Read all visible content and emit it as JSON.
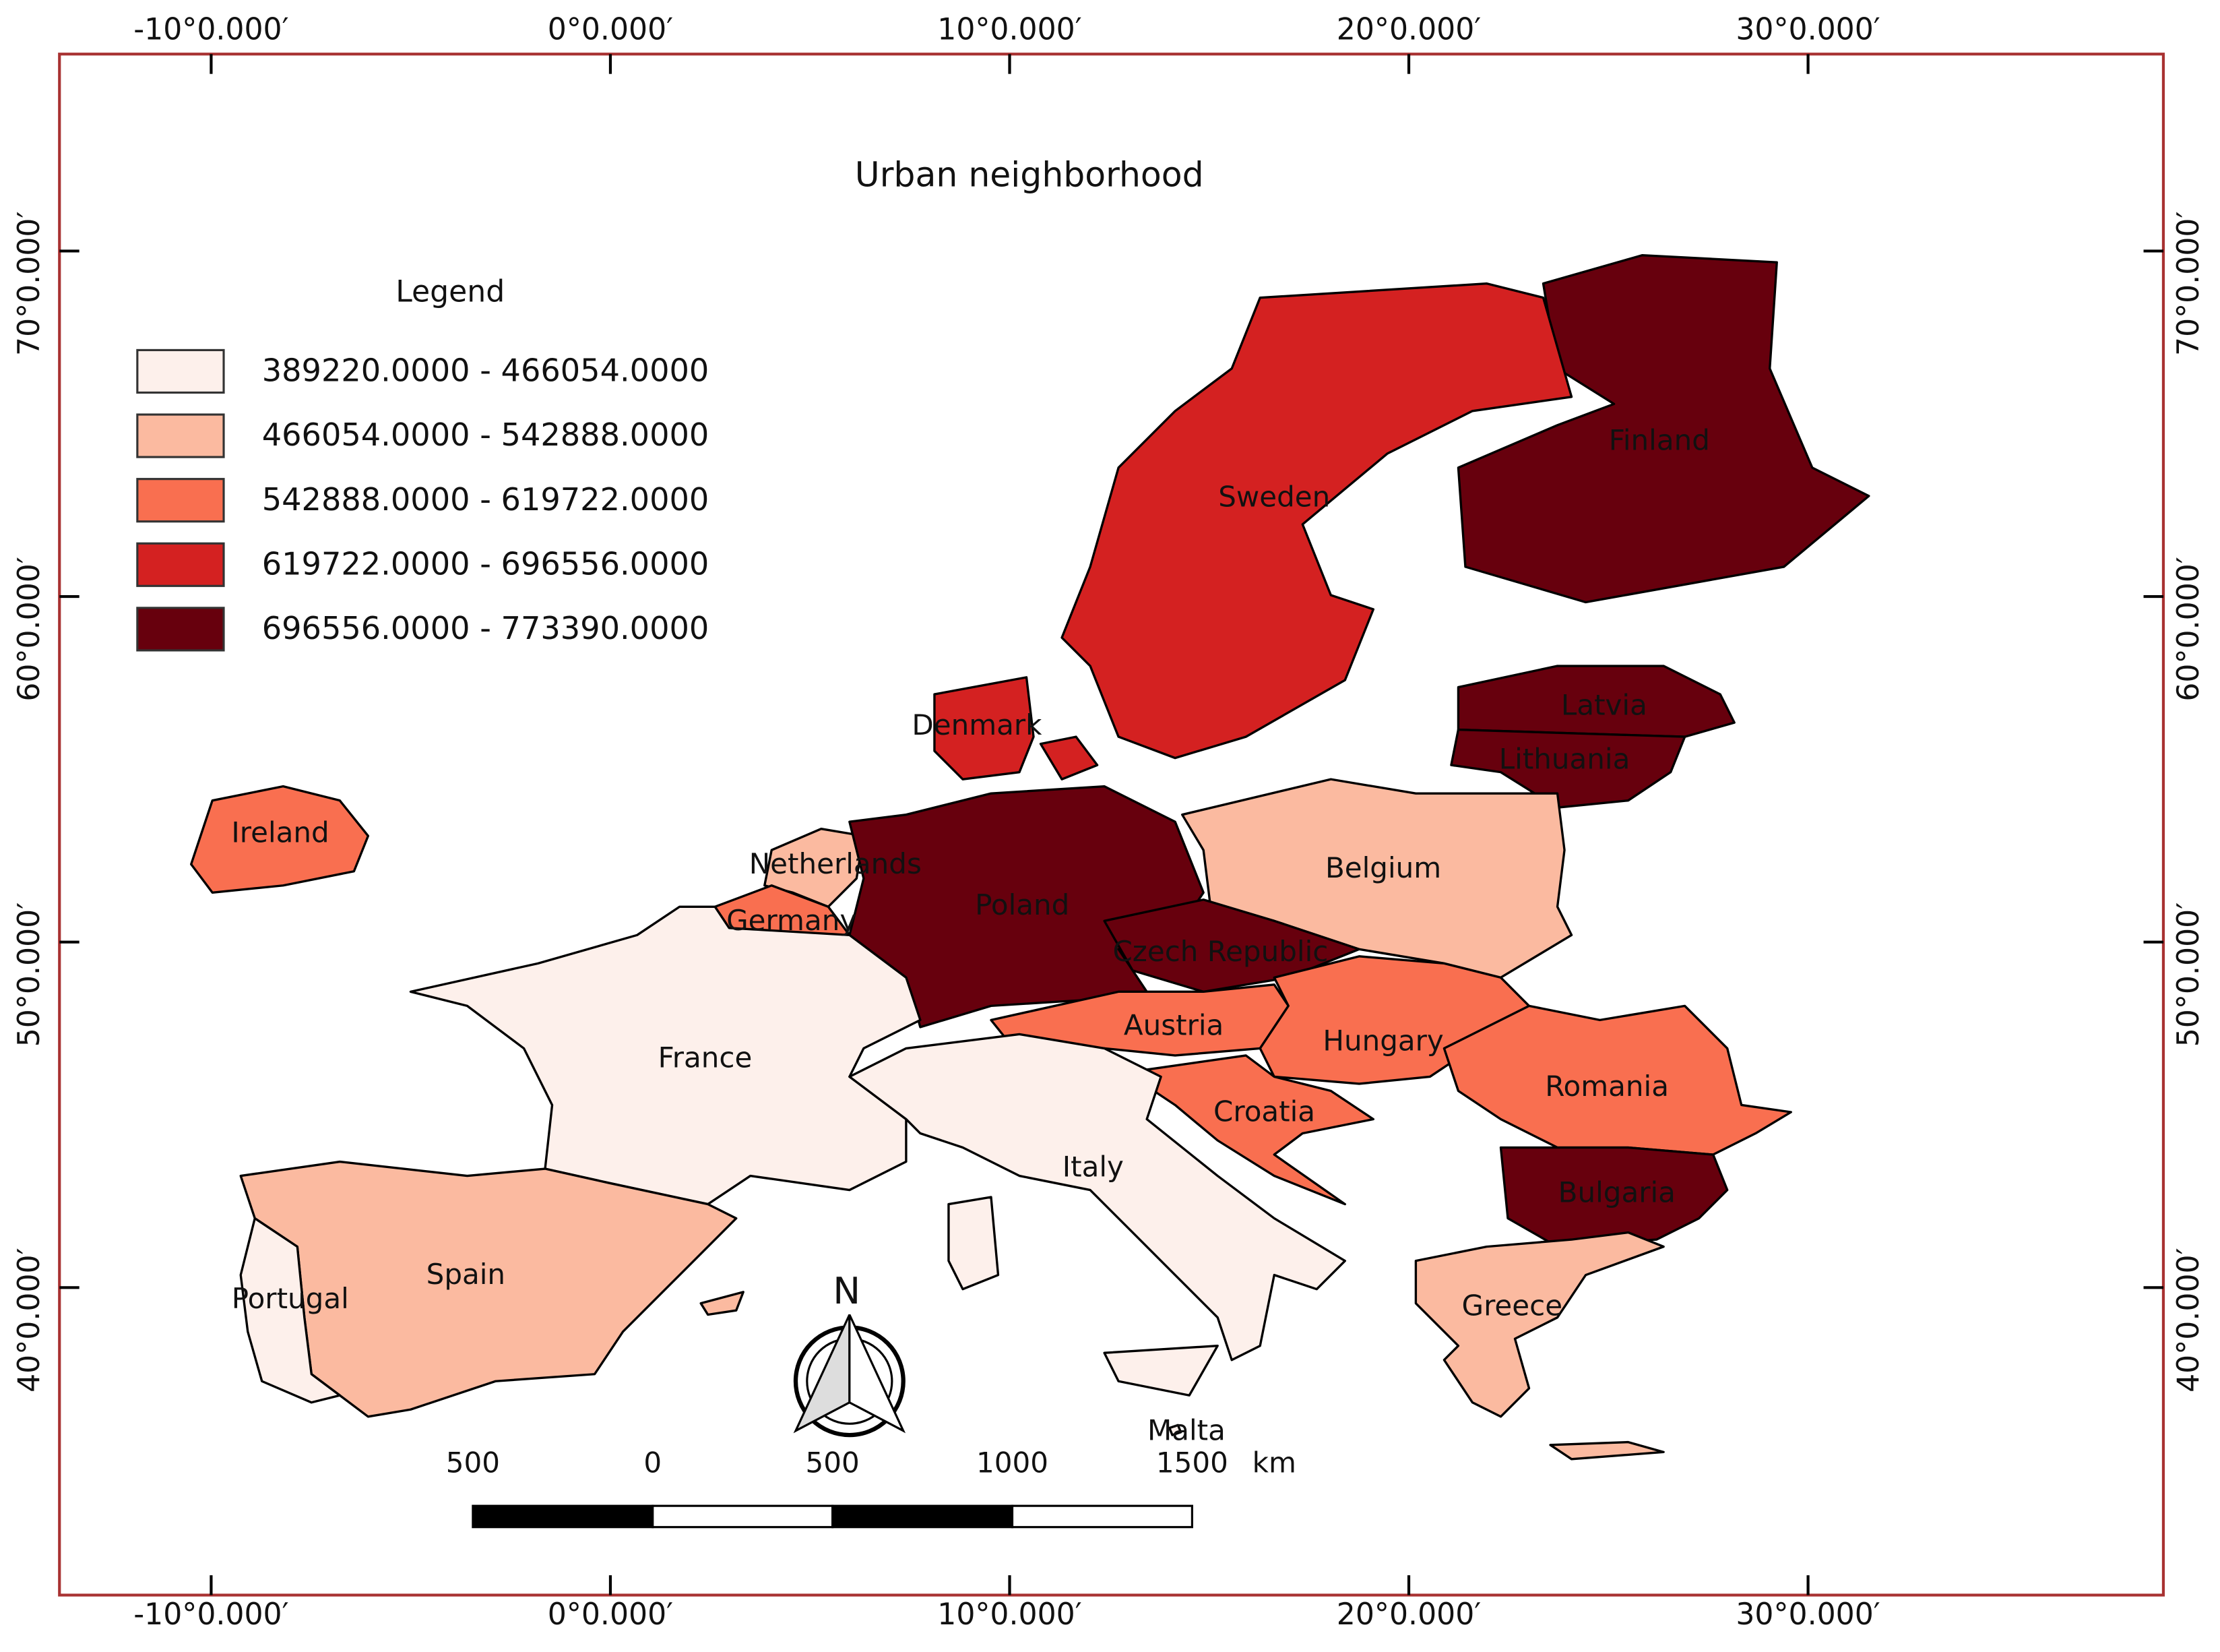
{
  "title": "Urban neighborhood",
  "legend": {
    "title": "Legend",
    "items": [
      {
        "label": "389220.0000 - 466054.0000",
        "color": "#fdf0eb"
      },
      {
        "label": "466054.0000 - 542888.0000",
        "color": "#fbbaa0"
      },
      {
        "label": "542888.0000 - 619722.0000",
        "color": "#f96f50"
      },
      {
        "label": "619722.0000 - 696556.0000",
        "color": "#d42121"
      },
      {
        "label": "696556.0000 - 773390.0000",
        "color": "#67000d"
      }
    ]
  },
  "graticule": {
    "xlim": [
      -13.8,
      38.9
    ],
    "ylim": [
      31.1,
      75.7
    ],
    "xticks": [
      {
        "value": -10,
        "label": "-10°0.000′"
      },
      {
        "value": 0,
        "label": "0°0.000′"
      },
      {
        "value": 10,
        "label": "10°0.000′"
      },
      {
        "value": 20,
        "label": "20°0.000′"
      },
      {
        "value": 30,
        "label": "30°0.000′"
      }
    ],
    "yticks": [
      {
        "value": 40,
        "label": "40°0.000′"
      },
      {
        "value": 50,
        "label": "50°0.000′"
      },
      {
        "value": 60,
        "label": "60°0.000′"
      },
      {
        "value": 70,
        "label": "70°0.000′"
      }
    ]
  },
  "countries": [
    {
      "name": "Finland",
      "color": "#67000d"
    },
    {
      "name": "Sweden",
      "color": "#d42121"
    },
    {
      "name": "Latvia",
      "color": "#67000d"
    },
    {
      "name": "Lithuania",
      "color": "#67000d"
    },
    {
      "name": "Denmark",
      "color": "#d42121"
    },
    {
      "name": "Ireland",
      "color": "#f96f50"
    },
    {
      "name": "Netherlands",
      "color": "#fbbaa0"
    },
    {
      "name": "Germany",
      "color": "#f96f50"
    },
    {
      "name": "Poland",
      "color": "#67000d"
    },
    {
      "name": "Belgium",
      "color": "#fbbaa0"
    },
    {
      "name": "Czech Republic",
      "color": "#67000d"
    },
    {
      "name": "Austria",
      "color": "#f96f50"
    },
    {
      "name": "Hungary",
      "color": "#f96f50"
    },
    {
      "name": "France",
      "color": "#fdf0eb"
    },
    {
      "name": "Romania",
      "color": "#f96f50"
    },
    {
      "name": "Croatia",
      "color": "#f96f50"
    },
    {
      "name": "Italy",
      "color": "#fdf0eb"
    },
    {
      "name": "Bulgaria",
      "color": "#67000d"
    },
    {
      "name": "Spain",
      "color": "#fbbaa0"
    },
    {
      "name": "Portugal",
      "color": "#fdf0eb"
    },
    {
      "name": "Greece",
      "color": "#fbbaa0"
    },
    {
      "name": "Malta",
      "color": "#fdf0eb"
    }
  ],
  "scale_bar": {
    "labels": [
      "500",
      "0",
      "500",
      "1000",
      "1500"
    ],
    "unit": "km"
  },
  "north_arrow": "N"
}
